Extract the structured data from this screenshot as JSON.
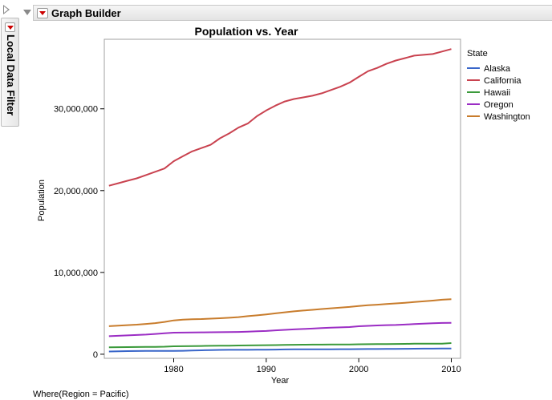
{
  "app": {
    "header_title": "Graph Builder",
    "side_panel_label": "Local Data Filter",
    "where_clause": "Where(Region = Pacific)"
  },
  "chart_data": {
    "type": "line",
    "title": "Population vs. Year",
    "xlabel": "Year",
    "ylabel": "Population",
    "xlim": [
      1972.5,
      2011
    ],
    "ylim": [
      -500000,
      38500000
    ],
    "x_ticks": [
      1980,
      1990,
      2000,
      2010
    ],
    "x_tick_labels": [
      "1980",
      "1990",
      "2000",
      "2010"
    ],
    "y_ticks": [
      0,
      10000000,
      20000000,
      30000000
    ],
    "y_tick_labels": [
      "0",
      "10,000,000",
      "20,000,000",
      "30,000,000"
    ],
    "legend_title": "State",
    "legend_position": "right",
    "x": [
      1973,
      1974,
      1975,
      1976,
      1977,
      1978,
      1979,
      1980,
      1981,
      1982,
      1983,
      1984,
      1985,
      1986,
      1987,
      1988,
      1989,
      1990,
      1991,
      1992,
      1993,
      1994,
      1995,
      1996,
      1997,
      1998,
      1999,
      2000,
      2001,
      2002,
      2003,
      2004,
      2005,
      2006,
      2007,
      2008,
      2009,
      2010
    ],
    "series": [
      {
        "name": "Alaska",
        "color": "#3966c9",
        "values": [
          330000,
          350000,
          380000,
          390000,
          400000,
          400000,
          400000,
          402000,
          420000,
          450000,
          480000,
          510000,
          530000,
          540000,
          540000,
          540000,
          550000,
          550000,
          570000,
          590000,
          600000,
          600000,
          600000,
          610000,
          610000,
          620000,
          620000,
          627000,
          633000,
          640000,
          648000,
          657000,
          664000,
          673000,
          681000,
          688000,
          698000,
          710000
        ]
      },
      {
        "name": "California",
        "color": "#c9424f",
        "values": [
          20600000,
          20900000,
          21200000,
          21500000,
          21900000,
          22300000,
          22700000,
          23600000,
          24200000,
          24800000,
          25200000,
          25600000,
          26400000,
          27000000,
          27700000,
          28200000,
          29100000,
          29800000,
          30400000,
          30900000,
          31200000,
          31400000,
          31600000,
          31900000,
          32300000,
          32700000,
          33200000,
          33900000,
          34600000,
          35000000,
          35500000,
          35900000,
          36200000,
          36500000,
          36600000,
          36700000,
          37000000,
          37300000
        ]
      },
      {
        "name": "Hawaii",
        "color": "#3b9a3b",
        "values": [
          850000,
          860000,
          870000,
          880000,
          890000,
          900000,
          920000,
          965000,
          980000,
          1000000,
          1010000,
          1030000,
          1040000,
          1050000,
          1070000,
          1080000,
          1090000,
          1108000,
          1120000,
          1140000,
          1160000,
          1170000,
          1180000,
          1180000,
          1190000,
          1190000,
          1190000,
          1212000,
          1220000,
          1230000,
          1240000,
          1250000,
          1260000,
          1280000,
          1290000,
          1290000,
          1295000,
          1360000
        ]
      },
      {
        "name": "Oregon",
        "color": "#9b2dc4",
        "values": [
          2200000,
          2250000,
          2300000,
          2350000,
          2400000,
          2480000,
          2560000,
          2633000,
          2650000,
          2660000,
          2670000,
          2680000,
          2690000,
          2700000,
          2720000,
          2760000,
          2800000,
          2842000,
          2920000,
          2980000,
          3040000,
          3090000,
          3140000,
          3200000,
          3240000,
          3280000,
          3320000,
          3421000,
          3470000,
          3520000,
          3560000,
          3580000,
          3630000,
          3690000,
          3740000,
          3790000,
          3820000,
          3831000
        ]
      },
      {
        "name": "Washington",
        "color": "#c87c2c",
        "values": [
          3430000,
          3500000,
          3560000,
          3620000,
          3700000,
          3800000,
          3950000,
          4132000,
          4230000,
          4280000,
          4300000,
          4350000,
          4400000,
          4460000,
          4540000,
          4650000,
          4750000,
          4867000,
          5000000,
          5120000,
          5240000,
          5340000,
          5430000,
          5530000,
          5610000,
          5690000,
          5780000,
          5894000,
          5990000,
          6060000,
          6130000,
          6210000,
          6290000,
          6380000,
          6470000,
          6560000,
          6660000,
          6725000
        ]
      }
    ]
  }
}
